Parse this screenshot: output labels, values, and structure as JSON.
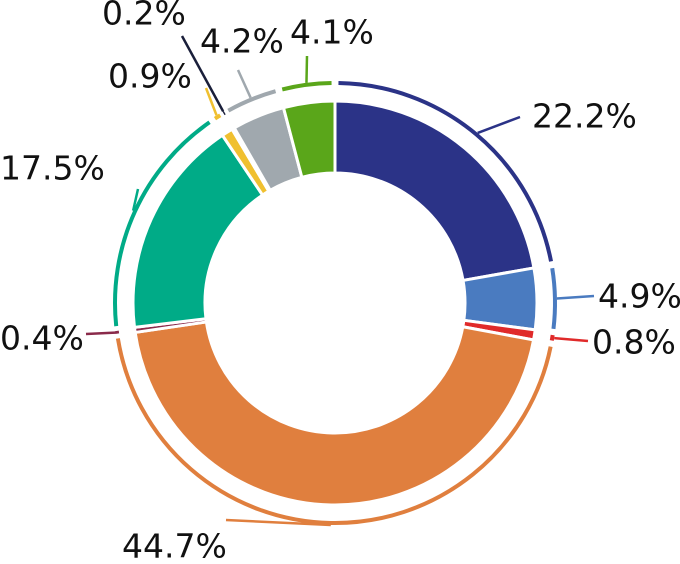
{
  "chart_data": {
    "type": "pie",
    "variant": "donut",
    "slices": [
      {
        "label": "22.2%",
        "value": 22.2,
        "color": "#2b3387"
      },
      {
        "label": "4.9%",
        "value": 4.9,
        "color": "#4a7bc0"
      },
      {
        "label": "0.8%",
        "value": 0.8,
        "color": "#e02a2a"
      },
      {
        "label": "44.7%",
        "value": 44.7,
        "color": "#e07f3e"
      },
      {
        "label": "0.4%",
        "value": 0.4,
        "color": "#8a2a4a"
      },
      {
        "label": "17.5%",
        "value": 17.5,
        "color": "#00ab87"
      },
      {
        "label": "0.9%",
        "value": 0.9,
        "color": "#f0c030"
      },
      {
        "label": "0.2%",
        "value": 0.2,
        "color": "#1a1f3a"
      },
      {
        "label": "4.2%",
        "value": 4.2,
        "color": "#a0a8ae"
      },
      {
        "label": "4.1%",
        "value": 4.1,
        "color": "#5aa61a"
      }
    ]
  }
}
